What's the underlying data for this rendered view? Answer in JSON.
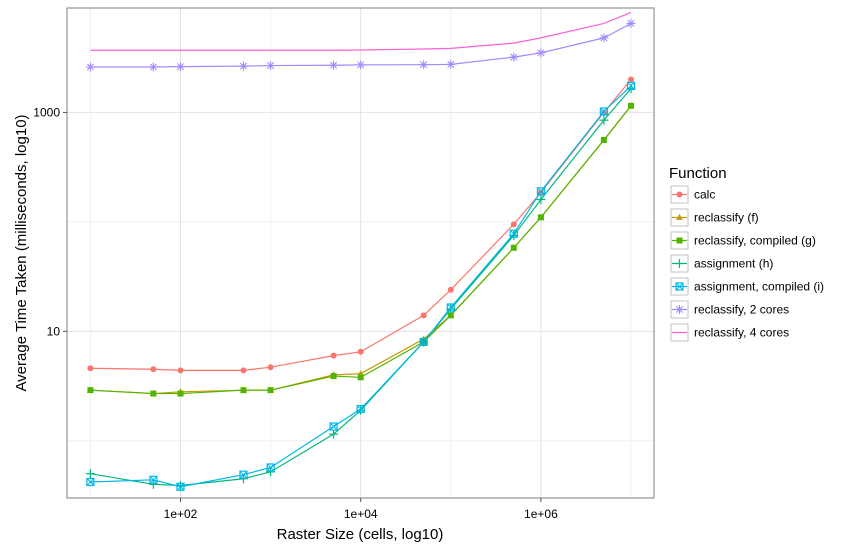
{
  "chart_data": {
    "type": "line",
    "title": "",
    "xlabel": "Raster Size (cells, log10)",
    "ylabel": "Average Time Taken (milliseconds, log10)",
    "x_scale": "log10",
    "y_scale": "log10",
    "xlim": [
      5.5,
      18000000
    ],
    "ylim": [
      0.3,
      9000
    ],
    "x_ticks": [
      100,
      10000,
      1000000
    ],
    "x_tick_labels": [
      "1e+02",
      "1e+04",
      "1e+06"
    ],
    "y_ticks": [
      10,
      1000
    ],
    "y_tick_labels": [
      "10",
      "1000"
    ],
    "grid": true,
    "legend": {
      "title": "Function",
      "position": "right"
    },
    "x": [
      10,
      50,
      100,
      500,
      1000,
      5000,
      10000,
      50000,
      100000,
      500000,
      1000000,
      5000000,
      10000000
    ],
    "series": [
      {
        "name": "calc",
        "color": "#F8766D",
        "marker": "circle",
        "values": [
          4.6,
          4.5,
          4.4,
          4.4,
          4.7,
          6.0,
          6.5,
          14,
          24,
          95,
          185,
          1000,
          2000
        ]
      },
      {
        "name": "reclassify (f)",
        "color": "#C49A00",
        "marker": "triangle",
        "values": [
          2.9,
          2.7,
          2.8,
          2.9,
          2.9,
          4.0,
          4.1,
          8.5,
          14,
          58,
          110,
          560,
          1150
        ]
      },
      {
        "name": "reclassify, compiled (g)",
        "color": "#53B400",
        "marker": "square",
        "values": [
          2.9,
          2.7,
          2.7,
          2.9,
          2.9,
          3.9,
          3.8,
          8.0,
          14,
          58,
          110,
          560,
          1150
        ]
      },
      {
        "name": "assignment (h)",
        "color": "#00B67C",
        "marker": "plus",
        "values": [
          0.5,
          0.4,
          0.39,
          0.45,
          0.52,
          1.15,
          1.9,
          8.0,
          16,
          75,
          160,
          850,
          1650
        ]
      },
      {
        "name": "assignment, compiled (i)",
        "color": "#00B6EB",
        "marker": "squarex",
        "values": [
          0.42,
          0.44,
          0.38,
          0.49,
          0.57,
          1.35,
          1.95,
          8.0,
          16.5,
          78,
          190,
          1020,
          1750
        ]
      },
      {
        "name": "reclassify, 2 cores",
        "color": "#A58AFF",
        "marker": "asterisk",
        "values": [
          2600,
          2600,
          2620,
          2650,
          2680,
          2700,
          2720,
          2730,
          2750,
          3200,
          3500,
          4800,
          6500
        ]
      },
      {
        "name": "reclassify, 4 cores",
        "color": "#FB61D7",
        "marker": "none",
        "values": [
          3700,
          3700,
          3700,
          3700,
          3700,
          3700,
          3720,
          3800,
          3850,
          4300,
          4800,
          6500,
          8200
        ]
      }
    ]
  }
}
